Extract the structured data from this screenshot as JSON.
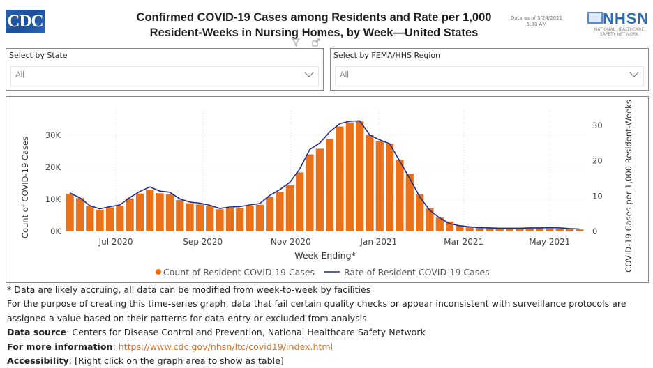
{
  "header": {
    "logo_text": "CDC",
    "title_line1": "Confirmed COVID-19 Cases among Residents and Rate per 1,000",
    "title_line2": "Resident-Weeks in Nursing Homes, by Week—United States",
    "as_of_line1": "Data as of 5/24/2021",
    "as_of_line2": "5:30 AM",
    "nhsn_word": "NHSN",
    "nhsn_sub1": "NATIONAL HEALTHCARE",
    "nhsn_sub2": "SAFETY NETWORK",
    "visual_icons": [
      "filter-icon",
      "focus-mode-icon"
    ]
  },
  "filters": {
    "state": {
      "label": "Select by State",
      "value": "All"
    },
    "region": {
      "label": "Select by FEMA/HHS Region",
      "value": "All"
    }
  },
  "colors": {
    "bar": "#E8711A",
    "line": "#1F2D8A",
    "link": "#E0701B",
    "cdc_blue": "#1C4F98"
  },
  "chart_data": {
    "type": "bar",
    "title": "Confirmed COVID-19 Cases among Residents and Rate per 1,000 Resident-Weeks in Nursing Homes, by Week—United States",
    "xlabel": "Week Ending*",
    "ylabel": "Count of COVID-19 Cases",
    "y2label": "COVID-19 Cases per 1,000 Resident-Weeks",
    "ylim": [
      0,
      35000
    ],
    "y2lim": [
      0,
      35
    ],
    "yticks": [
      0,
      10000,
      20000,
      30000
    ],
    "ytick_labels": [
      "0K",
      "10K",
      "20K",
      "30K"
    ],
    "y2ticks": [
      0,
      10,
      20,
      30
    ],
    "y2tick_labels": [
      "0",
      "10",
      "20",
      "30"
    ],
    "xtick_labels": [
      {
        "label": "Jul 2020",
        "index": 4.6
      },
      {
        "label": "Sep 2020",
        "index": 13.3
      },
      {
        "label": "Nov 2020",
        "index": 22.1
      },
      {
        "label": "Jan 2021",
        "index": 30.9
      },
      {
        "label": "Mar 2021",
        "index": 39.4
      },
      {
        "label": "May 2021",
        "index": 48.0
      }
    ],
    "grid": true,
    "legend_position": "bottom",
    "legend": [
      {
        "name": "Count of Resident COVID-19 Cases",
        "marker": "dot"
      },
      {
        "name": "Rate of Resident COVID-19 Cases",
        "marker": "line"
      }
    ],
    "series": [
      {
        "name": "Count of Resident COVID-19 Cases",
        "type": "bar",
        "axis": "left",
        "values": [
          11700,
          10400,
          7900,
          6800,
          7500,
          7900,
          10300,
          11800,
          13000,
          11900,
          11600,
          9800,
          8800,
          8400,
          7800,
          6900,
          7300,
          7300,
          7900,
          8300,
          10700,
          12300,
          14400,
          18400,
          24000,
          25800,
          28800,
          32700,
          34000,
          34300,
          30000,
          28200,
          27300,
          22300,
          18000,
          11600,
          7200,
          4300,
          3100,
          1900,
          1500,
          1300,
          1100,
          1000,
          1000,
          900,
          1000,
          1000,
          1000,
          900,
          800,
          600
        ]
      },
      {
        "name": "Rate of Resident COVID-19 Cases",
        "type": "line",
        "axis": "right",
        "values": [
          10.9,
          9.5,
          7.3,
          6.4,
          7.0,
          7.5,
          9.6,
          11.3,
          12.6,
          11.4,
          11.1,
          9.2,
          8.3,
          8.0,
          7.4,
          6.5,
          6.9,
          7.0,
          7.5,
          7.9,
          10.2,
          11.8,
          13.9,
          17.7,
          23.2,
          25.0,
          28.2,
          30.5,
          31.2,
          31.3,
          27.3,
          25.9,
          24.8,
          19.9,
          15.0,
          9.8,
          6.0,
          3.8,
          2.2,
          1.6,
          1.3,
          1.1,
          1.0,
          0.9,
          0.9,
          0.9,
          1.0,
          1.0,
          1.1,
          1.0,
          0.8,
          0.7
        ]
      }
    ]
  },
  "footer": {
    "note1": "* Data are likely accruing, all data can be modified from week-to-week by facilities",
    "note2": "For the purpose of creating this time-series graph, data that fail certain quality checks or appear inconsistent with surveillance protocols are assigned a value based on their patterns for data-entry or excluded from analysis",
    "source_label": "Data source",
    "source_text": ": Centers for Disease Control and Prevention, National Healthcare Safety Network",
    "more_label": "For more information",
    "more_sep": ": ",
    "more_link": "https://www.cdc.gov/nhsn/ltc/covid19/index.html",
    "access_label": "Accessibility",
    "access_text": ": [Right click on the graph area to show as table]"
  }
}
